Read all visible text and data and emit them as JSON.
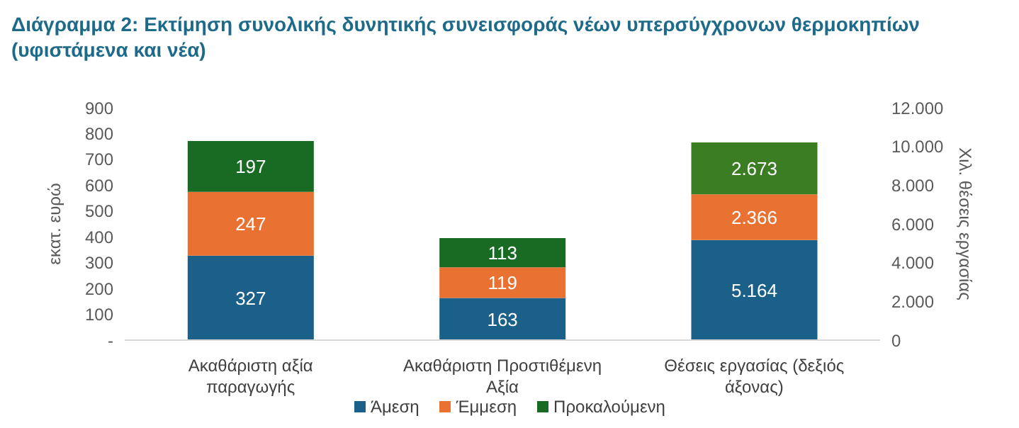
{
  "chart_data": {
    "type": "bar",
    "title": "Διάγραμμα 2: Εκτίμηση συνολικής δυνητικής συνεισφοράς νέων υπερσύγχρονων θερμοκηπίων (υφιστάμενα και νέα)",
    "ylabel": "εκατ. ευρώ",
    "y2label": "Χιλ. θέσεις εργασίας",
    "categories": [
      "Ακαθάριστη αξία παραγωγής",
      "Ακαθάριστη Προστιθέμενη Αξία",
      "Θέσεις εργασίας (δεξιός άξονας)"
    ],
    "stacked": true,
    "legend": "bottom",
    "grid": false,
    "ylim": [
      0,
      900
    ],
    "yticks": [
      {
        "value": 0,
        "label": "-"
      },
      100,
      200,
      300,
      400,
      500,
      600,
      700,
      800,
      900
    ],
    "y2lim": [
      0,
      12000
    ],
    "y2ticks": [
      0,
      {
        "value": 2000,
        "label": "2.000"
      },
      {
        "value": 4000,
        "label": "4.000"
      },
      {
        "value": 6000,
        "label": "6.000"
      },
      {
        "value": 8000,
        "label": "8.000"
      },
      {
        "value": 10000,
        "label": "10.000"
      },
      {
        "value": 12000,
        "label": "12.000"
      }
    ],
    "series": [
      {
        "name": "Άμεση",
        "color": "#1b6089",
        "values": [
          327,
          163,
          null
        ],
        "value_labels": [
          "327",
          "163",
          null
        ]
      },
      {
        "name": "Έμμεση",
        "color": "#e97132",
        "values": [
          247,
          119,
          null
        ],
        "value_labels": [
          "247",
          "119",
          null
        ]
      },
      {
        "name": "Προκαλούμενη",
        "color": "#196b24",
        "values": [
          197,
          113,
          null
        ],
        "value_labels": [
          "197",
          "113",
          null
        ]
      },
      {
        "color": "#1b6089",
        "axis": "y2",
        "values": [
          null,
          null,
          5164
        ],
        "value_labels": [
          null,
          null,
          "5.164"
        ]
      },
      {
        "color": "#e97132",
        "axis": "y2",
        "values": [
          null,
          null,
          2366
        ],
        "value_labels": [
          null,
          null,
          "2.366"
        ]
      },
      {
        "color": "#3b7d23",
        "axis": "y2",
        "values": [
          null,
          null,
          2673
        ],
        "value_labels": [
          null,
          null,
          "2.673"
        ]
      }
    ]
  }
}
